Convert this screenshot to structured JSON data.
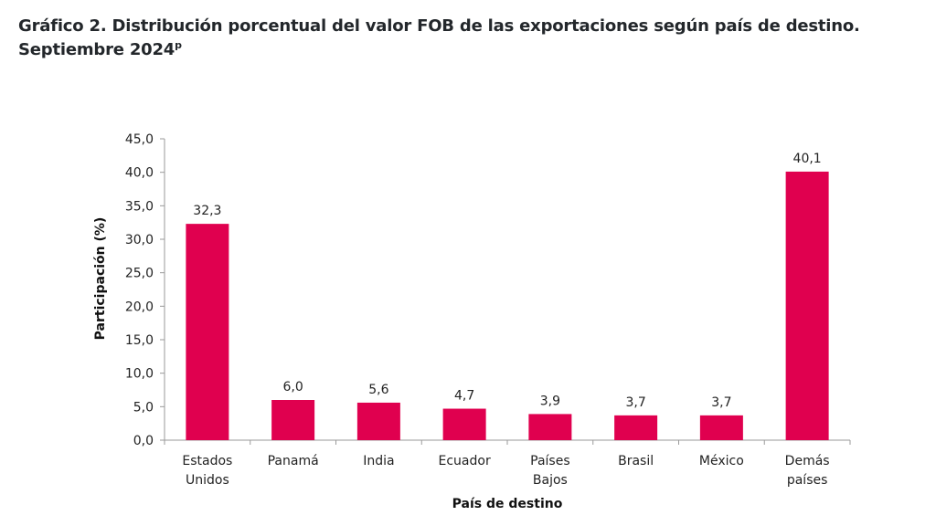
{
  "title": {
    "line1": "Gráfico 2. Distribución porcentual del valor FOB de las exportaciones según país de destino.",
    "line2": "Septiembre 2024",
    "superscript": "p"
  },
  "chart_data": {
    "type": "bar",
    "title": "Gráfico 2. Distribución porcentual del valor FOB de las exportaciones según país de destino. Septiembre 2024p",
    "xlabel": "País de destino",
    "ylabel": "Participación (%)",
    "ylim": [
      0,
      45
    ],
    "yticks": [
      "0,0",
      "5,0",
      "10,0",
      "15,0",
      "20,0",
      "25,0",
      "30,0",
      "35,0",
      "40,0",
      "45,0"
    ],
    "ytick_values": [
      0,
      5,
      10,
      15,
      20,
      25,
      30,
      35,
      40,
      45
    ],
    "grid": false,
    "legend": "none",
    "bar_color": "#e0004f",
    "categories": [
      [
        "Estados",
        "Unidos"
      ],
      [
        "Panamá"
      ],
      [
        "India"
      ],
      [
        "Ecuador"
      ],
      [
        "Países",
        "Bajos"
      ],
      [
        "Brasil"
      ],
      [
        "México"
      ],
      [
        "Demás",
        "países"
      ]
    ],
    "values": [
      32.3,
      6.0,
      5.6,
      4.7,
      3.9,
      3.7,
      3.7,
      40.1
    ],
    "value_labels": [
      "32,3",
      "6,0",
      "5,6",
      "4,7",
      "3,9",
      "3,7",
      "3,7",
      "40,1"
    ]
  }
}
